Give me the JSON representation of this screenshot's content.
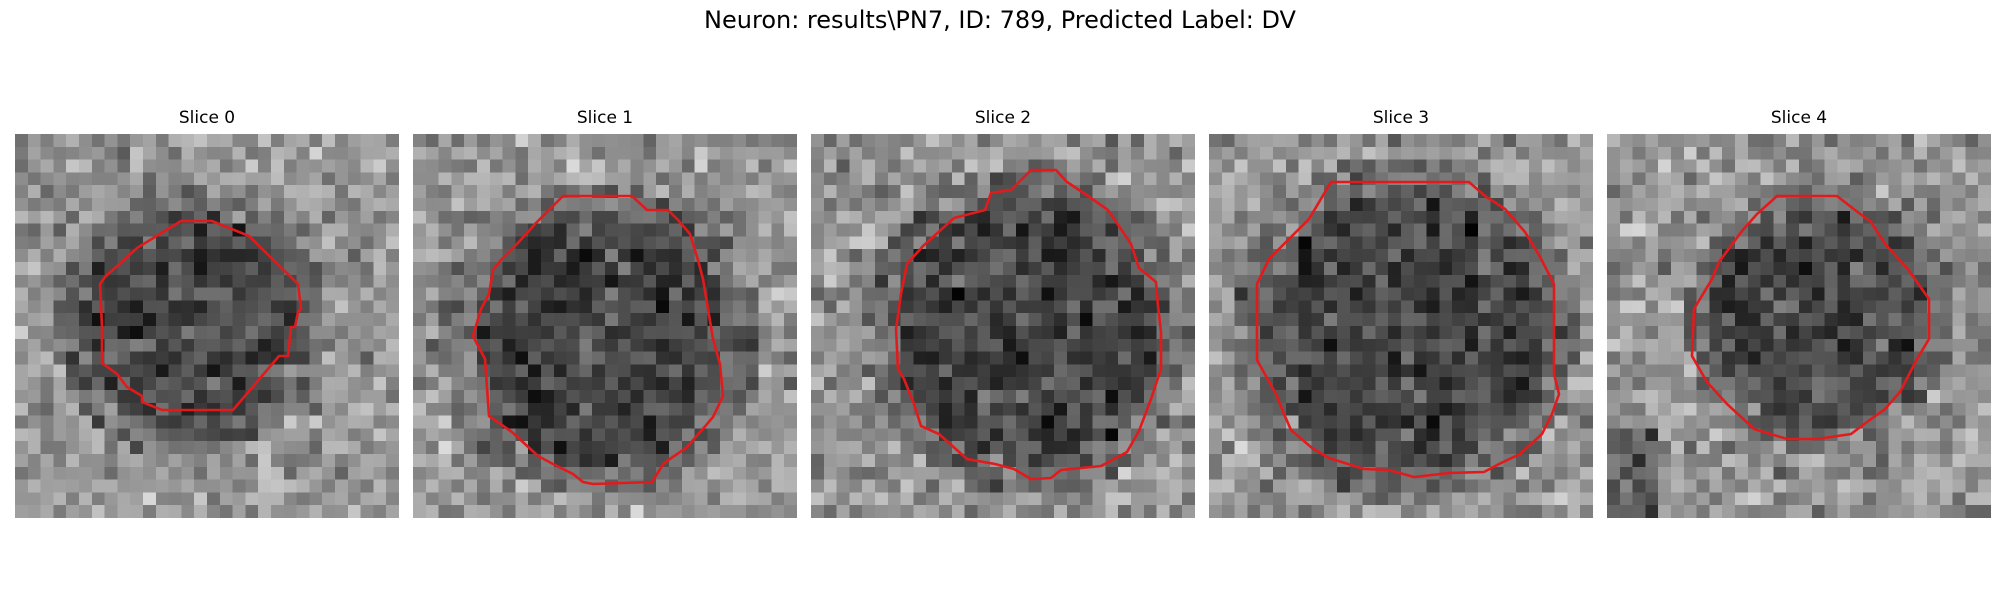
{
  "figure": {
    "title": "Neuron: results\\PN7, ID: 789, Predicted Label: DV"
  },
  "colors": {
    "contour": "#e31a1c",
    "background": "#ffffff"
  },
  "slices": [
    {
      "label": "Slice 0"
    },
    {
      "label": "Slice 1"
    },
    {
      "label": "Slice 2"
    },
    {
      "label": "Slice 3"
    },
    {
      "label": "Slice 4"
    }
  ]
}
